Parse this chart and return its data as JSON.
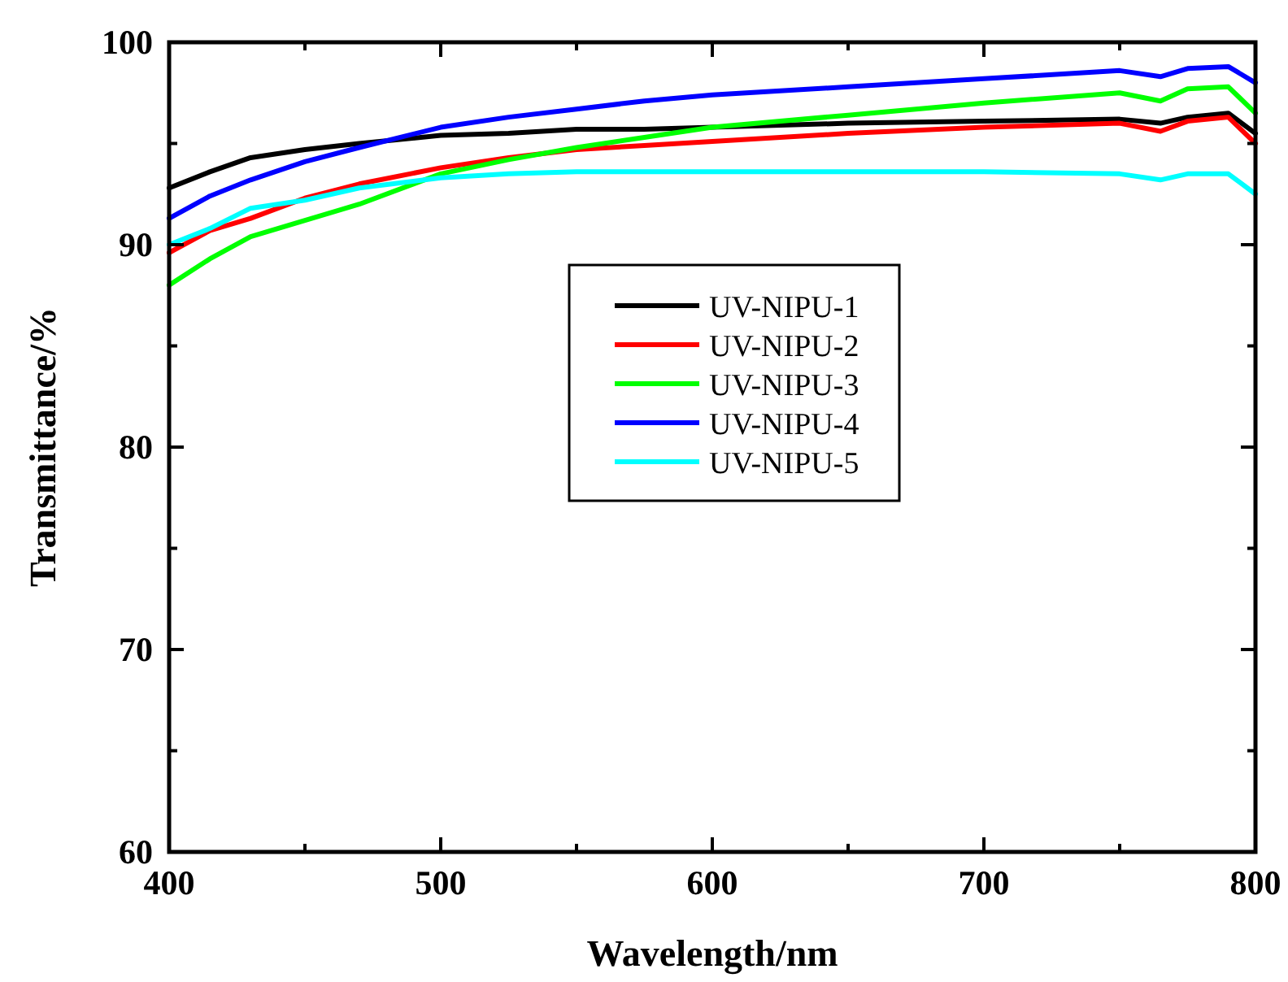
{
  "chart_data": {
    "type": "line",
    "xlabel": "Wavelength/nm",
    "ylabel": "Transmittance/%",
    "xlim": [
      400,
      800
    ],
    "ylim": [
      60,
      100
    ],
    "xticks": [
      400,
      {
        "value": 450,
        "label": null
      },
      500,
      {
        "value": 550,
        "label": null
      },
      600,
      {
        "value": 650,
        "label": null
      },
      700,
      {
        "value": 750,
        "label": null
      },
      800
    ],
    "yticks": [
      60,
      {
        "value": 65,
        "label": null
      },
      70,
      {
        "value": 75,
        "label": null
      },
      80,
      {
        "value": 85,
        "label": null
      },
      90,
      {
        "value": 95,
        "label": null
      },
      100
    ],
    "x": [
      400,
      415,
      430,
      450,
      470,
      500,
      525,
      550,
      575,
      600,
      650,
      700,
      750,
      765,
      775,
      790,
      800
    ],
    "legend": "center",
    "grid": false,
    "line_style": "solid",
    "marker": "none",
    "series": [
      {
        "name": "UV-NIPU-1",
        "color": "#000000",
        "values": [
          92.8,
          93.6,
          94.3,
          94.7,
          95,
          95.4,
          95.5,
          95.7,
          95.7,
          95.8,
          96,
          96.1,
          96.2,
          96,
          96.3,
          96.5,
          95.5
        ]
      },
      {
        "name": "UV-NIPU-2",
        "color": "#ff0000",
        "values": [
          89.6,
          90.7,
          91.3,
          92.3,
          93,
          93.8,
          94.3,
          94.7,
          94.9,
          95.1,
          95.5,
          95.8,
          96,
          95.6,
          96.1,
          96.3,
          95
        ]
      },
      {
        "name": "UV-NIPU-3",
        "color": "#00ff00",
        "values": [
          88,
          89.3,
          90.4,
          91.2,
          92,
          93.5,
          94.2,
          94.8,
          95.3,
          95.8,
          96.4,
          97,
          97.5,
          97.1,
          97.7,
          97.8,
          96.5
        ]
      },
      {
        "name": "UV-NIPU-4",
        "color": "#0000ff",
        "values": [
          91.3,
          92.4,
          93.2,
          94.1,
          94.8,
          95.8,
          96.3,
          96.7,
          97.1,
          97.4,
          97.8,
          98.2,
          98.6,
          98.3,
          98.7,
          98.8,
          98
        ]
      },
      {
        "name": "UV-NIPU-5",
        "color": "#00ffff",
        "values": [
          90,
          90.8,
          91.8,
          92.2,
          92.8,
          93.3,
          93.5,
          93.6,
          93.6,
          93.6,
          93.6,
          93.6,
          93.5,
          93.2,
          93.5,
          93.5,
          92.5
        ]
      }
    ]
  }
}
